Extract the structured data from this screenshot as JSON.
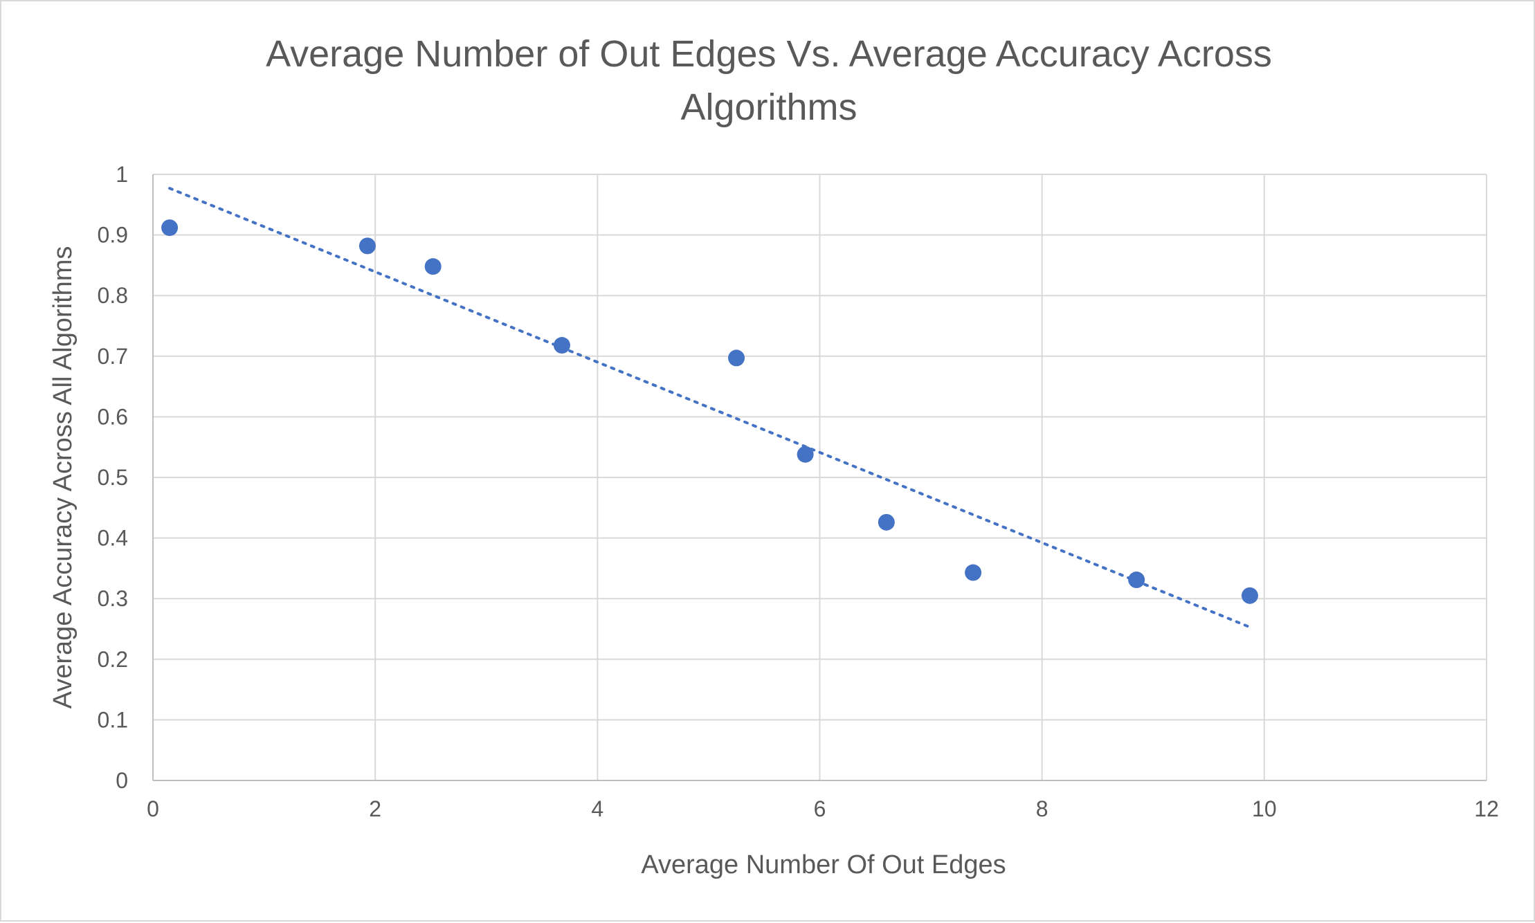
{
  "chart_data": {
    "type": "scatter",
    "title_lines": [
      "Average Number of Out Edges Vs. Average Accuracy Across",
      "Algorithms"
    ],
    "xlabel": "Average Number Of Out Edges",
    "ylabel": "Average Accuracy Across All Algorithms",
    "xlim": [
      0,
      12
    ],
    "ylim": [
      0,
      1
    ],
    "x_ticks": [
      0,
      2,
      4,
      6,
      8,
      10,
      12
    ],
    "y_ticks": [
      0,
      0.1,
      0.2,
      0.3,
      0.4,
      0.5,
      0.6,
      0.7,
      0.8,
      0.9,
      1
    ],
    "grid": true,
    "points": [
      {
        "x": 0.15,
        "y": 0.912
      },
      {
        "x": 1.93,
        "y": 0.882
      },
      {
        "x": 2.52,
        "y": 0.848
      },
      {
        "x": 3.68,
        "y": 0.718
      },
      {
        "x": 5.25,
        "y": 0.697
      },
      {
        "x": 5.87,
        "y": 0.538
      },
      {
        "x": 6.6,
        "y": 0.426
      },
      {
        "x": 7.38,
        "y": 0.343
      },
      {
        "x": 8.85,
        "y": 0.331
      },
      {
        "x": 9.87,
        "y": 0.305
      }
    ],
    "trendline": {
      "type": "linear",
      "from": {
        "x": 0.15,
        "y": 0.977
      },
      "to": {
        "x": 9.87,
        "y": 0.253
      }
    },
    "colors": {
      "marker": "#4472c4",
      "trendline": "#4472c4",
      "grid": "#d9d9d9",
      "text": "#595959"
    }
  }
}
